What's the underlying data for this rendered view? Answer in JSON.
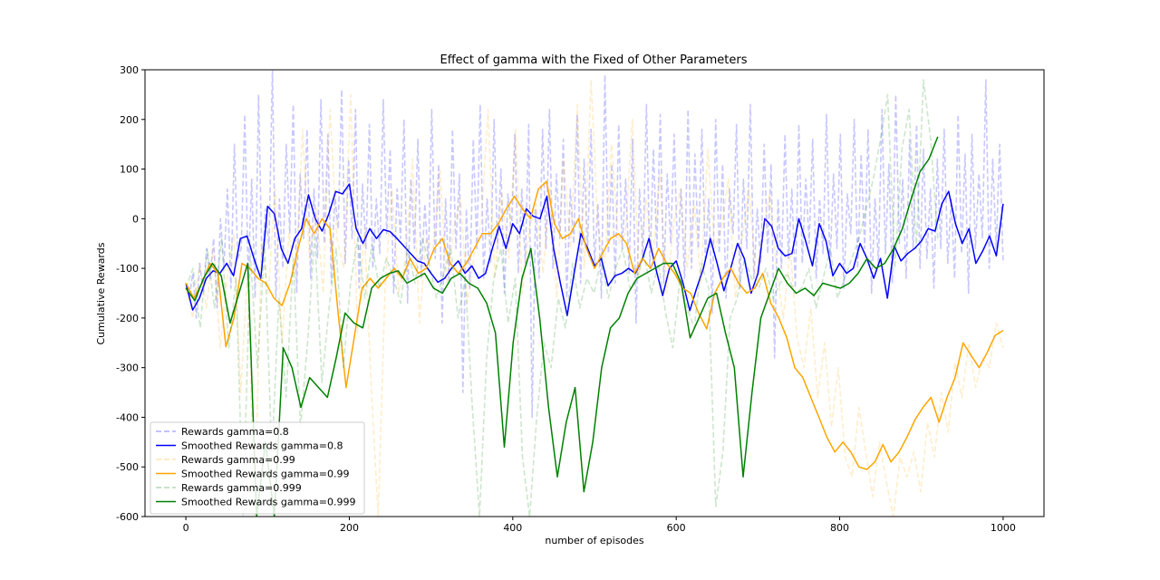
{
  "chart_data": {
    "type": "line",
    "title": "Effect of gamma with the Fixed of Other Parameters",
    "xlabel": "number of episodes",
    "ylabel": "Cumulative Rewards",
    "xlim": [
      -50,
      1050
    ],
    "ylim": [
      -600,
      300
    ],
    "xticks": [
      0,
      200,
      400,
      600,
      800,
      1000
    ],
    "yticks": [
      -600,
      -500,
      -400,
      -300,
      -200,
      -100,
      0,
      100,
      200,
      300
    ],
    "grid": false,
    "legend_position": "lower-left",
    "series": [
      {
        "name": "Rewards gamma=0.8",
        "style": "dashed",
        "color": "#0000ff",
        "opacity": 0.22,
        "x_start": 0,
        "x_end": 1000,
        "values": [
          -130,
          -160,
          -110,
          -200,
          -90,
          -150,
          -60,
          -120,
          -40,
          -180,
          0,
          -100,
          60,
          -140,
          150,
          -80,
          -60,
          210,
          -120,
          80,
          -160,
          250,
          -100,
          20,
          -60,
          300,
          -160,
          40,
          -100,
          150,
          -30,
          230,
          -150,
          90,
          -40,
          180,
          -120,
          60,
          -80,
          240,
          -50,
          170,
          -130,
          50,
          -20,
          260,
          -90,
          120,
          -40,
          220,
          -140,
          70,
          -60,
          190,
          -100,
          40,
          -70,
          240,
          -30,
          140,
          -150,
          60,
          -40,
          200,
          -170,
          80,
          -60,
          160,
          -120,
          30,
          -90,
          220,
          -80,
          110,
          -210,
          40,
          -130,
          180,
          -60,
          90,
          -350,
          20,
          -140,
          160,
          -60,
          230,
          -120,
          40,
          -90,
          200,
          -60,
          100,
          -150,
          50,
          -30,
          170,
          -110,
          60,
          -90,
          190,
          -400,
          20,
          -120,
          180,
          -60,
          220,
          -100,
          90,
          -40,
          160,
          -160,
          60,
          -50,
          210,
          -130,
          120,
          -60,
          180,
          -90,
          30,
          -160,
          290,
          -70,
          110,
          -130,
          190,
          -60,
          80,
          -110,
          160,
          -210,
          60,
          -80,
          230,
          -100,
          140,
          -60,
          210,
          -130,
          90,
          -50,
          170,
          -80,
          60,
          -120,
          220,
          -100,
          130,
          -60,
          180,
          -80,
          40,
          -190,
          200,
          -70,
          110,
          -160,
          60,
          -30,
          190,
          -140,
          80,
          -60,
          230,
          -120,
          20,
          -90,
          150,
          -70,
          110,
          -280,
          40,
          -100,
          170,
          -80,
          60,
          -140,
          190,
          -90,
          80,
          -50,
          160,
          -120,
          40,
          -70,
          210,
          -100,
          90,
          -60,
          170,
          -140,
          50,
          -30,
          200,
          -100,
          130,
          -60,
          180,
          -150,
          40,
          -90,
          220,
          -70,
          110,
          -130,
          250,
          -50,
          80,
          -120,
          160,
          -60,
          190,
          -100,
          140,
          -80,
          60,
          -140,
          120,
          -60,
          180,
          -90,
          40,
          -120,
          210,
          -70,
          130,
          -150,
          170,
          -60,
          90,
          -40,
          280,
          -100,
          120,
          -60,
          150,
          -90
        ]
      },
      {
        "name": "Smoothed Rewards gamma=0.8",
        "style": "solid",
        "color": "#0000ff",
        "opacity": 1,
        "x_start": 0,
        "x_end": 1000,
        "values": [
          -130,
          -184,
          -160,
          -120,
          -105,
          -110,
          -90,
          -115,
          -40,
          -35,
          -80,
          -120,
          25,
          10,
          -60,
          -90,
          -40,
          -20,
          48,
          0,
          -25,
          10,
          55,
          50,
          70,
          -20,
          -50,
          -20,
          -40,
          -22,
          -26,
          -40,
          -55,
          -70,
          -85,
          -90,
          -110,
          -128,
          -120,
          -100,
          -85,
          -110,
          -95,
          -120,
          -110,
          -60,
          -15,
          -60,
          -10,
          -30,
          20,
          5,
          0,
          45,
          -60,
          -130,
          -195,
          -110,
          -30,
          -60,
          -95,
          -80,
          -135,
          -115,
          -110,
          -100,
          -110,
          -82,
          -40,
          -100,
          -155,
          -100,
          -85,
          -130,
          -185,
          -140,
          -100,
          -40,
          -90,
          -145,
          -100,
          -50,
          -80,
          -150,
          -110,
          0,
          -15,
          -60,
          -75,
          -70,
          0,
          -45,
          -95,
          -10,
          -45,
          -115,
          -90,
          -110,
          -100,
          -50,
          -80,
          -120,
          -80,
          -160,
          -55,
          -85,
          -70,
          -60,
          -45,
          -20,
          -25,
          30,
          55,
          -10,
          -50,
          -20,
          -90,
          -65,
          -35,
          -75,
          30
        ]
      },
      {
        "name": "Rewards gamma=0.99",
        "style": "dashed",
        "color": "#ffa500",
        "opacity": 0.2,
        "x_start": 0,
        "x_end": 1000,
        "values": [
          -140,
          -200,
          -90,
          -180,
          -60,
          -260,
          -120,
          -30,
          -350,
          -100,
          -600,
          -50,
          -150,
          60,
          -250,
          -30,
          -120,
          180,
          -80,
          20,
          -150,
          220,
          -40,
          -100,
          250,
          -230,
          -20,
          -340,
          -600,
          -140,
          60,
          -150,
          -80,
          120,
          -210,
          -40,
          -60,
          100,
          -130,
          -20,
          40,
          -170,
          -70,
          -10,
          220,
          -120,
          50,
          -80,
          180,
          -150,
          -20,
          30,
          -110,
          60,
          -160,
          120,
          -60,
          230,
          -100,
          280,
          -20,
          -90,
          150,
          -50,
          -30,
          200,
          -120,
          40,
          -80,
          90,
          -150,
          -10,
          60,
          -100,
          30,
          -130,
          140,
          -60,
          -20,
          80,
          -160,
          -40,
          60,
          -120,
          -30,
          50,
          -100,
          -200,
          -60,
          -240,
          -300,
          -180,
          -360,
          -250,
          -420,
          -300,
          -480,
          -520,
          -380,
          -470,
          -560,
          -450,
          -530,
          -600,
          -480,
          -520,
          -470,
          -550,
          -410,
          -480,
          -350,
          -430,
          -290,
          -360,
          -250,
          -340,
          -280,
          -300,
          -210,
          -260
        ]
      },
      {
        "name": "Smoothed Rewards gamma=0.99",
        "style": "solid",
        "color": "#ffa500",
        "opacity": 1,
        "x_start": 0,
        "x_end": 1000,
        "values": [
          -130,
          -160,
          -130,
          -90,
          -110,
          -258,
          -200,
          -90,
          -100,
          -120,
          -130,
          -160,
          -175,
          -130,
          -60,
          0,
          -30,
          0,
          -20,
          -190,
          -340,
          -240,
          -140,
          -120,
          -140,
          -120,
          -100,
          -120,
          -80,
          -110,
          -100,
          -60,
          -40,
          -90,
          -110,
          -90,
          -60,
          -30,
          -30,
          -10,
          20,
          45,
          20,
          0,
          60,
          75,
          -10,
          -40,
          -30,
          0,
          -60,
          -100,
          -70,
          -40,
          -30,
          -50,
          -110,
          -80,
          -100,
          -60,
          -90,
          -110,
          -140,
          -150,
          -190,
          -222,
          -150,
          -120,
          -100,
          -130,
          -150,
          -140,
          -110,
          -170,
          -200,
          -240,
          -300,
          -320,
          -360,
          -400,
          -440,
          -470,
          -450,
          -470,
          -500,
          -505,
          -490,
          -455,
          -490,
          -470,
          -440,
          -405,
          -380,
          -360,
          -410,
          -360,
          -320,
          -250,
          -275,
          -300,
          -270,
          -235,
          -225
        ]
      },
      {
        "name": "Rewards gamma=0.999",
        "style": "dashed",
        "color": "#008000",
        "opacity": 0.2,
        "x_start": 0,
        "x_end": 920,
        "values": [
          -140,
          -100,
          -220,
          -60,
          -180,
          -40,
          -260,
          -120,
          -600,
          -70,
          -300,
          -50,
          -480,
          -160,
          -360,
          -80,
          -420,
          -250,
          -30,
          -330,
          -180,
          -60,
          -300,
          -130,
          -40,
          -160,
          -50,
          -140,
          -80,
          -120,
          -170,
          -60,
          -130,
          -40,
          -90,
          -160,
          -110,
          -60,
          -200,
          -120,
          -380,
          -600,
          -280,
          -120,
          -60,
          -210,
          -120,
          -480,
          -600,
          -400,
          -250,
          -300,
          -160,
          -220,
          -90,
          -180,
          -120,
          -150,
          -80,
          -160,
          -100,
          -60,
          -140,
          -120,
          -70,
          -150,
          -90,
          -190,
          -260,
          -120,
          -180,
          -220,
          -90,
          -140,
          -580,
          -470,
          -200,
          -160,
          -80,
          -120,
          -140,
          -100,
          -160,
          -130,
          -110,
          -150,
          -140,
          -100,
          -180,
          -120,
          -60,
          -160,
          -120,
          -80,
          -40,
          20,
          80,
          160,
          250,
          -100,
          140,
          220,
          -60,
          280,
          160,
          -40
        ]
      },
      {
        "name": "Smoothed Rewards gamma=0.999",
        "style": "solid",
        "color": "#008000",
        "opacity": 1,
        "x_start": 0,
        "x_end": 920,
        "values": [
          -140,
          -165,
          -120,
          -90,
          -115,
          -210,
          -150,
          -90,
          -600,
          -450,
          -600,
          -260,
          -300,
          -380,
          -320,
          -340,
          -360,
          -280,
          -190,
          -210,
          -220,
          -140,
          -120,
          -110,
          -105,
          -130,
          -120,
          -110,
          -140,
          -150,
          -120,
          -110,
          -130,
          -140,
          -170,
          -230,
          -460,
          -250,
          -120,
          -60,
          -200,
          -380,
          -520,
          -410,
          -340,
          -550,
          -450,
          -300,
          -220,
          -200,
          -150,
          -120,
          -110,
          -100,
          -90,
          -90,
          -130,
          -240,
          -200,
          -160,
          -150,
          -230,
          -300,
          -520,
          -350,
          -200,
          -150,
          -100,
          -130,
          -150,
          -140,
          -155,
          -130,
          -135,
          -140,
          -130,
          -110,
          -80,
          -100,
          -90,
          -60,
          -20,
          40,
          95,
          120,
          165
        ]
      }
    ]
  }
}
